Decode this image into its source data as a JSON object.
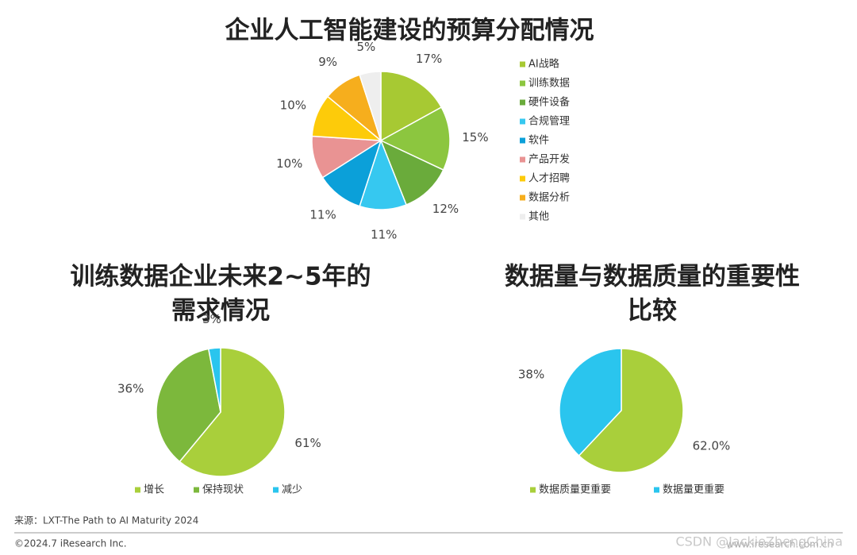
{
  "chart_data": [
    {
      "type": "pie",
      "title": [
        "企业人工智能建设的预算分配情况"
      ],
      "categories": [
        "AI战略",
        "训练数据",
        "硬件设备",
        "合规管理",
        "软件",
        "产品开发",
        "人才招聘",
        "数据分析",
        "其他"
      ],
      "values": [
        17,
        15,
        12,
        11,
        11,
        10,
        10,
        9,
        5
      ],
      "value_labels": [
        "17%",
        "15%",
        "12%",
        "11%",
        "11%",
        "10%",
        "10%",
        "9%",
        "5%"
      ],
      "colors": [
        "#a7c933",
        "#8cc63f",
        "#6aab3b",
        "#36c8f0",
        "#0ba0d9",
        "#e99393",
        "#fdcb0a",
        "#f6ae1d",
        "#eeeeee"
      ],
      "legend": "right"
    },
    {
      "type": "pie",
      "title": [
        "训练数据企业未来2~5年的",
        "需求情况"
      ],
      "categories": [
        "增长",
        "保持现状",
        "减少"
      ],
      "values": [
        61,
        36,
        3
      ],
      "value_labels": [
        "61%",
        "36%",
        "3%"
      ],
      "colors": [
        "#a9cf3b",
        "#7cb83c",
        "#2ac5ee"
      ],
      "legend": "bottom"
    },
    {
      "type": "pie",
      "title": [
        "数据量与数据质量的重要性",
        "比较"
      ],
      "categories": [
        "数据质量更重要",
        "数据量更重要"
      ],
      "values": [
        62.0,
        38
      ],
      "value_labels": [
        "62.0%",
        "38%"
      ],
      "colors": [
        "#a9cf3b",
        "#2ac5ee"
      ],
      "legend": "bottom"
    }
  ],
  "source": "来源：LXT-The Path to AI Maturity 2024",
  "copyright": "©2024.7 iResearch Inc.",
  "website": "www.iresearch.com.cn",
  "watermark": "CSDN @JackieZhengChina"
}
